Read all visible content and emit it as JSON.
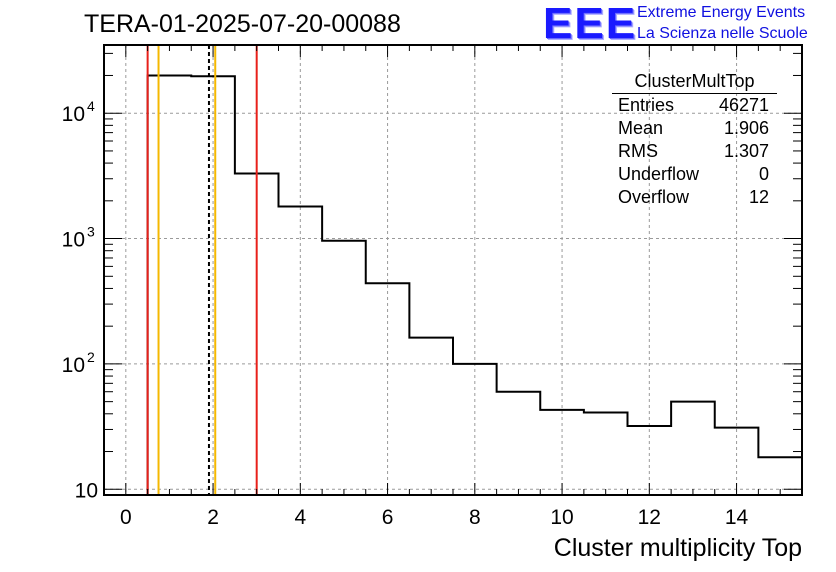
{
  "title": "TERA-01-2025-07-20-00088",
  "logo": {
    "mark": "EEE",
    "line1": "Extreme Energy Events",
    "line2": "La Scienza nelle Scuole"
  },
  "stats": {
    "name": "ClusterMultTop",
    "rows": [
      {
        "label": "Entries",
        "value": "46271"
      },
      {
        "label": "Mean",
        "value": "1.906"
      },
      {
        "label": "RMS",
        "value": "1.307"
      },
      {
        "label": "Underflow",
        "value": "0"
      },
      {
        "label": "Overflow",
        "value": "12"
      }
    ]
  },
  "colors": {
    "red_line": "#e8201a",
    "orange_line": "#f5b800",
    "grid": "#9a9a9a"
  },
  "chart_data": {
    "type": "histogram",
    "title": "TERA-01-2025-07-20-00088",
    "xlabel": "Cluster multiplicity Top",
    "ylabel": "",
    "y_scale": "log",
    "xlim": [
      -0.5,
      15.5
    ],
    "ylim": [
      9,
      35000
    ],
    "grid": true,
    "bins": [
      {
        "low": -0.5,
        "high": 0.5,
        "count": 0
      },
      {
        "low": 0.5,
        "high": 1.5,
        "count": 20000
      },
      {
        "low": 1.5,
        "high": 2.5,
        "count": 19700
      },
      {
        "low": 2.5,
        "high": 3.5,
        "count": 3300
      },
      {
        "low": 3.5,
        "high": 4.5,
        "count": 1800
      },
      {
        "low": 4.5,
        "high": 5.5,
        "count": 960
      },
      {
        "low": 5.5,
        "high": 6.5,
        "count": 440
      },
      {
        "low": 6.5,
        "high": 7.5,
        "count": 162
      },
      {
        "low": 7.5,
        "high": 8.5,
        "count": 100
      },
      {
        "low": 8.5,
        "high": 9.5,
        "count": 60
      },
      {
        "low": 9.5,
        "high": 10.5,
        "count": 43
      },
      {
        "low": 10.5,
        "high": 11.5,
        "count": 41
      },
      {
        "low": 11.5,
        "high": 12.5,
        "count": 32
      },
      {
        "low": 12.5,
        "high": 13.5,
        "count": 50
      },
      {
        "low": 13.5,
        "high": 14.5,
        "count": 31
      },
      {
        "low": 14.5,
        "high": 15.5,
        "count": 18
      }
    ],
    "x_ticks": [
      0,
      2,
      4,
      6,
      8,
      10,
      12,
      14
    ],
    "x_tick_labels": [
      "0",
      "2",
      "4",
      "6",
      "8",
      "10",
      "12",
      "14"
    ],
    "y_ticks": [
      {
        "value": 10,
        "base": "10",
        "exp": ""
      },
      {
        "value": 100,
        "base": "10",
        "exp": "2"
      },
      {
        "value": 1000,
        "base": "10",
        "exp": "3"
      },
      {
        "value": 10000,
        "base": "10",
        "exp": "4"
      }
    ],
    "vertical_lines": [
      {
        "x": 0.5,
        "color": "#e8201a",
        "style": "solid"
      },
      {
        "x": 0.75,
        "color": "#f5b800",
        "style": "solid"
      },
      {
        "x": 1.906,
        "color": "#000000",
        "style": "dashed"
      },
      {
        "x": 2.05,
        "color": "#f5b800",
        "style": "solid"
      },
      {
        "x": 3.0,
        "color": "#e8201a",
        "style": "solid"
      }
    ]
  }
}
